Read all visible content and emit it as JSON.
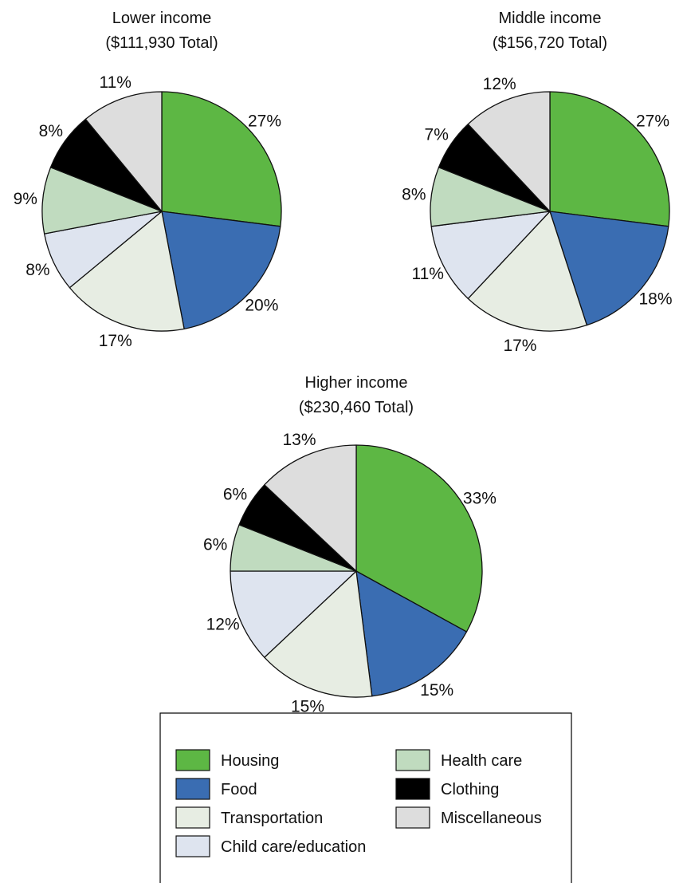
{
  "colors": {
    "Housing": "#5db744",
    "Food": "#3a6db2",
    "Transportation": "#e7ede3",
    "Child care/education": "#dee4ef",
    "Health care": "#c0dbbf",
    "Clothing": "#000000",
    "Miscellaneous": "#dddddd"
  },
  "chart_data": [
    {
      "type": "pie",
      "title": "Lower income",
      "subtitle": "($111,930 Total)",
      "categories": [
        "Housing",
        "Food",
        "Transportation",
        "Child care/education",
        "Health care",
        "Clothing",
        "Miscellaneous"
      ],
      "values": [
        27,
        20,
        17,
        8,
        9,
        8,
        11
      ],
      "labels": [
        "27%",
        "20%",
        "17%",
        "8%",
        "9%",
        "8%",
        "11%"
      ]
    },
    {
      "type": "pie",
      "title": "Middle income",
      "subtitle": "($156,720 Total)",
      "categories": [
        "Housing",
        "Food",
        "Transportation",
        "Child care/education",
        "Health care",
        "Clothing",
        "Miscellaneous"
      ],
      "values": [
        27,
        18,
        17,
        11,
        8,
        7,
        12
      ],
      "labels": [
        "27%",
        "18%",
        "17%",
        "11%",
        "8%",
        "7%",
        "12%"
      ]
    },
    {
      "type": "pie",
      "title": "Higher income",
      "subtitle": "($230,460 Total)",
      "categories": [
        "Housing",
        "Food",
        "Transportation",
        "Child care/education",
        "Health care",
        "Clothing",
        "Miscellaneous"
      ],
      "values": [
        33,
        15,
        15,
        12,
        6,
        6,
        13
      ],
      "labels": [
        "33%",
        "15%",
        "15%",
        "12%",
        "6%",
        "6%",
        "13%"
      ]
    }
  ],
  "legend": {
    "items": [
      "Housing",
      "Food",
      "Transportation",
      "Child care/education",
      "Health care",
      "Clothing",
      "Miscellaneous"
    ],
    "placement": "bottom"
  }
}
